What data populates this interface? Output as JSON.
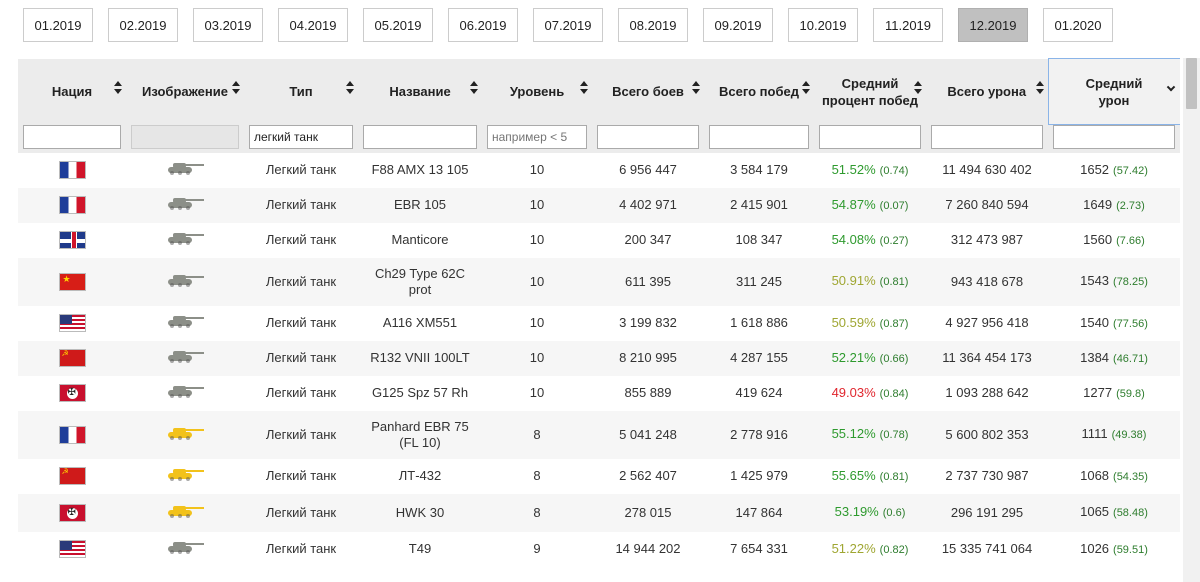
{
  "months": {
    "items": [
      "01.2019",
      "02.2019",
      "03.2019",
      "04.2019",
      "05.2019",
      "06.2019",
      "07.2019",
      "08.2019",
      "09.2019",
      "10.2019",
      "11.2019",
      "12.2019",
      "01.2020"
    ],
    "active": "12.2019"
  },
  "headers": {
    "nation": "Нация",
    "image": "Изображение",
    "type": "Тип",
    "name": "Название",
    "level": "Уровень",
    "battles": "Всего боев",
    "wins": "Всего побед",
    "winrate_line1": "Средний",
    "winrate_line2": "процент побед",
    "damage": "Всего урона",
    "avg_damage_line1": "Средний",
    "avg_damage_line2": "урон"
  },
  "filters": {
    "type_value": "легкий танк",
    "level_placeholder": "например < 5"
  },
  "colors": {
    "winrate_high": "#2e9a2e",
    "winrate_mid": "#9fa632",
    "winrate_low": "#e0262e",
    "tank_grey": "#8c8f88",
    "tank_yellow": "#f2c21b",
    "active_month": "#c0c0c0"
  },
  "rows": [
    {
      "nation": "france",
      "tank_icon": "grey-tank-icon",
      "type": "Легкий танк",
      "name": "F88 AMX 13 105",
      "level": "10",
      "battles": "6 956 447",
      "wins": "3 584 179",
      "winrate": "51.52%",
      "winrate_delta": "(0.74)",
      "damage": "11 494 630 402",
      "avg_damage": "1652",
      "avg_damage_delta": "(57.42)"
    },
    {
      "nation": "france",
      "tank_icon": "grey-tank-icon",
      "type": "Легкий танк",
      "name": "EBR 105",
      "level": "10",
      "battles": "4 402 971",
      "wins": "2 415 901",
      "winrate": "54.87%",
      "winrate_delta": "(0.07)",
      "damage": "7 260 840 594",
      "avg_damage": "1649",
      "avg_damage_delta": "(2.73)"
    },
    {
      "nation": "uk",
      "tank_icon": "grey-tank-icon",
      "type": "Легкий танк",
      "name": "Manticore",
      "level": "10",
      "battles": "200 347",
      "wins": "108 347",
      "winrate": "54.08%",
      "winrate_delta": "(0.27)",
      "damage": "312 473 987",
      "avg_damage": "1560",
      "avg_damage_delta": "(7.66)"
    },
    {
      "nation": "china",
      "tank_icon": "grey-tank-icon",
      "type": "Легкий танк",
      "name": "Ch29 Type 62C prot",
      "level": "10",
      "battles": "611 395",
      "wins": "311 245",
      "winrate": "50.91%",
      "winrate_delta": "(0.81)",
      "damage": "943 418 678",
      "avg_damage": "1543",
      "avg_damage_delta": "(78.25)"
    },
    {
      "nation": "usa",
      "tank_icon": "grey-tank-icon",
      "type": "Легкий танк",
      "name": "A116 XM551",
      "level": "10",
      "battles": "3 199 832",
      "wins": "1 618 886",
      "winrate": "50.59%",
      "winrate_delta": "(0.87)",
      "damage": "4 927 956 418",
      "avg_damage": "1540",
      "avg_damage_delta": "(77.56)"
    },
    {
      "nation": "ussr",
      "tank_icon": "grey-tank-icon",
      "type": "Легкий танк",
      "name": "R132 VNII 100LT",
      "level": "10",
      "battles": "8 210 995",
      "wins": "4 287 155",
      "winrate": "52.21%",
      "winrate_delta": "(0.66)",
      "damage": "11 364 454 173",
      "avg_damage": "1384",
      "avg_damage_delta": "(46.71)"
    },
    {
      "nation": "germany",
      "tank_icon": "grey-tank-icon",
      "type": "Легкий танк",
      "name": "G125 Spz 57 Rh",
      "level": "10",
      "battles": "855 889",
      "wins": "419 624",
      "winrate": "49.03%",
      "winrate_delta": "(0.84)",
      "damage": "1 093 288 642",
      "avg_damage": "1277",
      "avg_damage_delta": "(59.8)"
    },
    {
      "nation": "france",
      "tank_icon": "yellow-tank-icon",
      "type": "Легкий танк",
      "name": "Panhard EBR 75 (FL 10)",
      "level": "8",
      "battles": "5 041 248",
      "wins": "2 778 916",
      "winrate": "55.12%",
      "winrate_delta": "(0.78)",
      "damage": "5 600 802 353",
      "avg_damage": "1111",
      "avg_damage_delta": "(49.38)"
    },
    {
      "nation": "ussr",
      "tank_icon": "yellow-tank-icon",
      "type": "Легкий танк",
      "name": "ЛТ-432",
      "level": "8",
      "battles": "2 562 407",
      "wins": "1 425 979",
      "winrate": "55.65%",
      "winrate_delta": "(0.81)",
      "damage": "2 737 730 987",
      "avg_damage": "1068",
      "avg_damage_delta": "(54.35)"
    },
    {
      "nation": "germany",
      "tank_icon": "yellow-tank-icon",
      "type": "Легкий танк",
      "name": "HWK 30",
      "level": "8",
      "battles": "278 015",
      "wins": "147 864",
      "winrate": "53.19%",
      "winrate_delta": "(0.6)",
      "damage": "296 191 295",
      "avg_damage": "1065",
      "avg_damage_delta": "(58.48)"
    },
    {
      "nation": "usa",
      "tank_icon": "grey-tank-icon",
      "type": "Легкий танк",
      "name": "T49",
      "level": "9",
      "battles": "14 944 202",
      "wins": "7 654 331",
      "winrate": "51.22%",
      "winrate_delta": "(0.82)",
      "damage": "15 335 741 064",
      "avg_damage": "1026",
      "avg_damage_delta": "(59.51)"
    }
  ]
}
